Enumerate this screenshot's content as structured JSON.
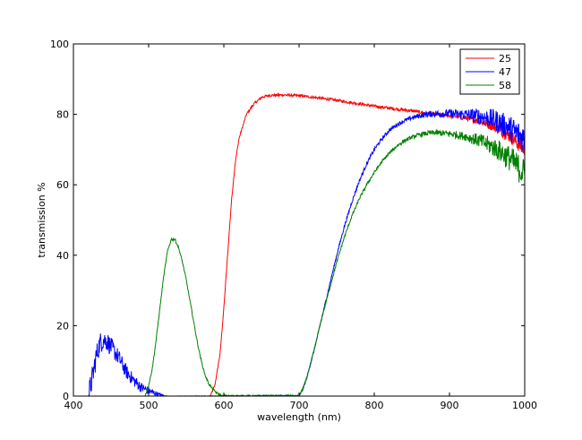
{
  "chart_data": {
    "type": "line",
    "title": "",
    "xlabel": "wavelength (nm)",
    "ylabel": "transmission %",
    "xlim": [
      400,
      1000
    ],
    "ylim": [
      0,
      100
    ],
    "xticks": [
      400,
      500,
      600,
      700,
      800,
      900,
      1000
    ],
    "yticks": [
      0,
      20,
      40,
      60,
      80,
      100
    ],
    "grid": false,
    "legend_position": "top-right",
    "series": [
      {
        "name": "25",
        "color": "#ff0000",
        "points": [
          [
            582,
            0
          ],
          [
            588,
            3
          ],
          [
            595,
            12
          ],
          [
            600,
            25
          ],
          [
            605,
            40
          ],
          [
            610,
            55
          ],
          [
            615,
            66
          ],
          [
            620,
            73
          ],
          [
            630,
            80
          ],
          [
            640,
            83
          ],
          [
            650,
            84.8
          ],
          [
            660,
            85.4
          ],
          [
            680,
            85.5
          ],
          [
            700,
            85.3
          ],
          [
            720,
            84.8
          ],
          [
            750,
            84
          ],
          [
            780,
            83
          ],
          [
            800,
            82.3
          ],
          [
            830,
            81.5
          ],
          [
            850,
            81
          ],
          [
            870,
            80.3
          ],
          [
            900,
            79.6
          ],
          [
            920,
            79
          ],
          [
            940,
            78
          ],
          [
            960,
            76.5
          ],
          [
            980,
            74
          ],
          [
            1000,
            70
          ]
        ],
        "noise": [
          [
            582,
            0.3
          ],
          [
            900,
            0.5
          ],
          [
            940,
            1
          ],
          [
            1000,
            2.5
          ]
        ]
      },
      {
        "name": "47",
        "color": "#0000ff",
        "points": [
          [
            420,
            0
          ],
          [
            425,
            5
          ],
          [
            430,
            11
          ],
          [
            435,
            15
          ],
          [
            440,
            16
          ],
          [
            445,
            15.5
          ],
          [
            450,
            14
          ],
          [
            460,
            11
          ],
          [
            470,
            7
          ],
          [
            480,
            4.5
          ],
          [
            490,
            2.5
          ],
          [
            500,
            1.5
          ],
          [
            510,
            0.7
          ],
          [
            520,
            0.1
          ],
          [
            525,
            0
          ],
          [
            700,
            0
          ],
          [
            705,
            2
          ],
          [
            710,
            5
          ],
          [
            715,
            9
          ],
          [
            720,
            13
          ],
          [
            730,
            22
          ],
          [
            740,
            31
          ],
          [
            750,
            40
          ],
          [
            760,
            48
          ],
          [
            770,
            55
          ],
          [
            780,
            61
          ],
          [
            790,
            66
          ],
          [
            800,
            70
          ],
          [
            810,
            73
          ],
          [
            820,
            75.5
          ],
          [
            830,
            77
          ],
          [
            840,
            78.2
          ],
          [
            850,
            79
          ],
          [
            860,
            79.6
          ],
          [
            870,
            80
          ],
          [
            880,
            80.2
          ],
          [
            900,
            80.2
          ],
          [
            920,
            80
          ],
          [
            940,
            79.5
          ],
          [
            960,
            78.5
          ],
          [
            980,
            76
          ],
          [
            1000,
            73
          ]
        ],
        "noise": [
          [
            420,
            3.5
          ],
          [
            500,
            1.2
          ],
          [
            525,
            0
          ],
          [
            700,
            0.3
          ],
          [
            850,
            0.6
          ],
          [
            920,
            1.5
          ],
          [
            1000,
            4.5
          ]
        ]
      },
      {
        "name": "58",
        "color": "#008000",
        "points": [
          [
            495,
            0
          ],
          [
            500,
            3
          ],
          [
            505,
            8
          ],
          [
            510,
            16
          ],
          [
            515,
            25
          ],
          [
            520,
            34
          ],
          [
            525,
            41
          ],
          [
            530,
            44.5
          ],
          [
            535,
            44.5
          ],
          [
            540,
            42
          ],
          [
            545,
            38
          ],
          [
            550,
            33
          ],
          [
            555,
            27
          ],
          [
            560,
            21
          ],
          [
            565,
            15
          ],
          [
            570,
            10
          ],
          [
            575,
            6
          ],
          [
            580,
            3.5
          ],
          [
            585,
            2
          ],
          [
            590,
            1
          ],
          [
            597,
            0
          ],
          [
            700,
            0
          ],
          [
            705,
            2
          ],
          [
            710,
            5
          ],
          [
            715,
            9
          ],
          [
            720,
            13
          ],
          [
            730,
            22
          ],
          [
            740,
            30
          ],
          [
            750,
            38
          ],
          [
            760,
            45
          ],
          [
            770,
            51
          ],
          [
            780,
            56
          ],
          [
            790,
            60
          ],
          [
            800,
            63.5
          ],
          [
            810,
            66.5
          ],
          [
            820,
            69
          ],
          [
            830,
            71
          ],
          [
            840,
            72.5
          ],
          [
            850,
            73.5
          ],
          [
            860,
            74.2
          ],
          [
            870,
            74.6
          ],
          [
            880,
            74.8
          ],
          [
            900,
            74.5
          ],
          [
            920,
            73.8
          ],
          [
            940,
            72.5
          ],
          [
            960,
            70.5
          ],
          [
            980,
            67.5
          ],
          [
            1000,
            63
          ]
        ],
        "noise": [
          [
            495,
            0.4
          ],
          [
            600,
            0.3
          ],
          [
            700,
            0.3
          ],
          [
            850,
            0.5
          ],
          [
            920,
            1.2
          ],
          [
            1000,
            4.5
          ]
        ]
      }
    ]
  }
}
